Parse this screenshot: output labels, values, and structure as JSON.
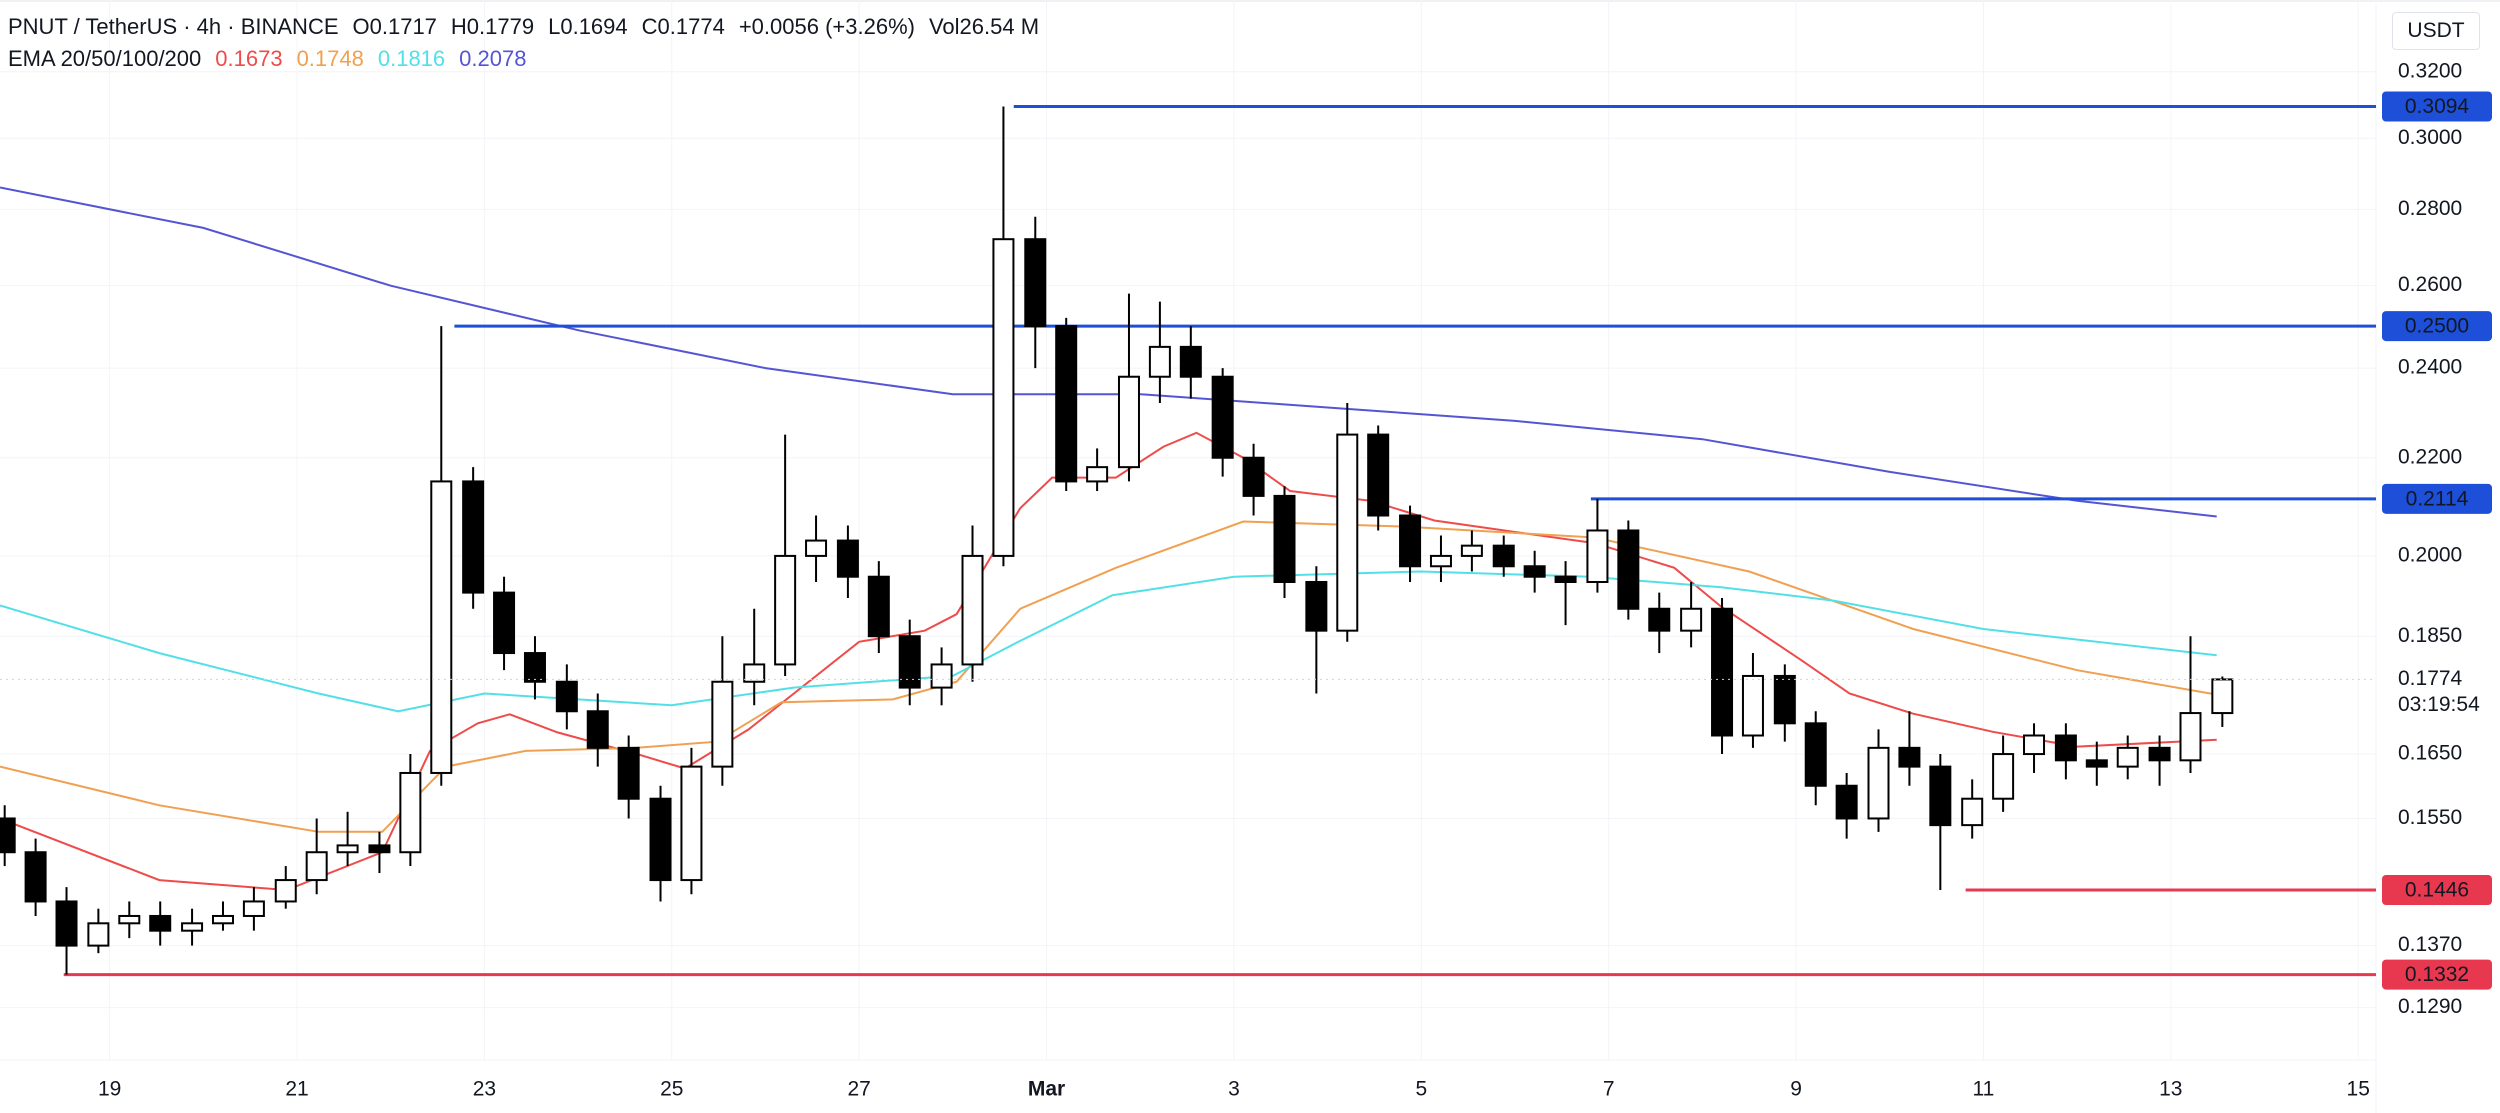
{
  "chart_data": {
    "type": "candlestick",
    "header": {
      "symbol": "PNUT / TetherUS · 4h · BINANCE",
      "stats": [
        "O0.1717",
        "H0.1779",
        "L0.1694",
        "C0.1774",
        "+0.0056 (+3.26%)",
        "Vol26.54 M"
      ],
      "indicator": "EMA 20/50/100/200"
    },
    "currency": "USDT",
    "log_scale": true,
    "grid": true,
    "xlim": [
      -1.17,
      24.19
    ],
    "xticks": [
      {
        "value": 0,
        "label": "19"
      },
      {
        "value": 2,
        "label": "21"
      },
      {
        "value": 4,
        "label": "23"
      },
      {
        "value": 6,
        "label": "25"
      },
      {
        "value": 8,
        "label": "27"
      },
      {
        "value": 10,
        "label": "Mar"
      },
      {
        "value": 12,
        "label": "3"
      },
      {
        "value": 14,
        "label": "5"
      },
      {
        "value": 16,
        "label": "7"
      },
      {
        "value": 18,
        "label": "9"
      },
      {
        "value": 20,
        "label": "11"
      },
      {
        "value": 22,
        "label": "13"
      },
      {
        "value": 24,
        "label": "15"
      }
    ],
    "ylim": [
      0.1226,
      0.3431
    ],
    "yticks": [
      {
        "value": 0.32,
        "label": "0.3200"
      },
      {
        "value": 0.3,
        "label": "0.3000"
      },
      {
        "value": 0.28,
        "label": "0.2800"
      },
      {
        "value": 0.26,
        "label": "0.2600"
      },
      {
        "value": 0.24,
        "label": "0.2400"
      },
      {
        "value": 0.22,
        "label": "0.2200"
      },
      {
        "value": 0.2,
        "label": "0.2000"
      },
      {
        "value": 0.185,
        "label": "0.1850"
      },
      {
        "value": 0.165,
        "label": "0.1650"
      },
      {
        "value": 0.155,
        "label": "0.1550"
      },
      {
        "value": 0.137,
        "label": "0.1370"
      },
      {
        "value": 0.129,
        "label": "0.1290"
      }
    ],
    "up_color": "#ffffff",
    "down_color": "#000000",
    "candles": {
      "x": [
        -1.12,
        -0.79,
        -0.46,
        -0.12,
        0.21,
        0.54,
        0.88,
        1.21,
        1.54,
        1.88,
        2.21,
        2.54,
        2.88,
        3.21,
        3.54,
        3.88,
        4.21,
        4.54,
        4.88,
        5.21,
        5.54,
        5.88,
        6.21,
        6.54,
        6.88,
        7.21,
        7.54,
        7.88,
        8.21,
        8.54,
        8.88,
        9.21,
        9.54,
        9.88,
        10.21,
        10.54,
        10.88,
        11.21,
        11.54,
        11.88,
        12.21,
        12.54,
        12.88,
        13.21,
        13.54,
        13.88,
        14.21,
        14.54,
        14.88,
        15.21,
        15.54,
        15.88,
        16.21,
        16.54,
        16.88,
        17.21,
        17.54,
        17.88,
        18.21,
        18.54,
        18.88,
        19.21,
        19.54,
        19.88,
        20.21,
        20.54,
        20.88,
        21.21,
        21.54,
        21.88,
        22.21,
        22.55
      ],
      "open": [
        0.155,
        0.15,
        0.143,
        0.137,
        0.14,
        0.141,
        0.139,
        0.14,
        0.141,
        0.143,
        0.146,
        0.15,
        0.151,
        0.15,
        0.162,
        0.215,
        0.193,
        0.182,
        0.177,
        0.172,
        0.166,
        0.158,
        0.146,
        0.163,
        0.177,
        0.18,
        0.2,
        0.203,
        0.196,
        0.185,
        0.176,
        0.18,
        0.2,
        0.272,
        0.25,
        0.215,
        0.218,
        0.238,
        0.245,
        0.238,
        0.22,
        0.212,
        0.195,
        0.186,
        0.225,
        0.208,
        0.198,
        0.2,
        0.202,
        0.198,
        0.196,
        0.195,
        0.205,
        0.19,
        0.186,
        0.19,
        0.168,
        0.178,
        0.17,
        0.16,
        0.155,
        0.166,
        0.163,
        0.154,
        0.158,
        0.165,
        0.168,
        0.164,
        0.163,
        0.166,
        0.164,
        0.1717
      ],
      "high": [
        0.157,
        0.152,
        0.145,
        0.142,
        0.143,
        0.143,
        0.142,
        0.143,
        0.145,
        0.148,
        0.155,
        0.156,
        0.153,
        0.165,
        0.25,
        0.218,
        0.196,
        0.185,
        0.18,
        0.175,
        0.168,
        0.16,
        0.166,
        0.185,
        0.19,
        0.225,
        0.208,
        0.206,
        0.199,
        0.188,
        0.183,
        0.206,
        0.3094,
        0.278,
        0.252,
        0.222,
        0.258,
        0.256,
        0.25,
        0.24,
        0.223,
        0.214,
        0.198,
        0.232,
        0.227,
        0.21,
        0.204,
        0.205,
        0.204,
        0.201,
        0.199,
        0.2114,
        0.207,
        0.193,
        0.195,
        0.192,
        0.182,
        0.18,
        0.172,
        0.162,
        0.169,
        0.172,
        0.165,
        0.161,
        0.168,
        0.17,
        0.17,
        0.167,
        0.168,
        0.168,
        0.185,
        0.1779
      ],
      "low": [
        0.148,
        0.141,
        0.1332,
        0.136,
        0.138,
        0.137,
        0.137,
        0.139,
        0.139,
        0.142,
        0.144,
        0.148,
        0.147,
        0.148,
        0.16,
        0.19,
        0.179,
        0.174,
        0.169,
        0.163,
        0.155,
        0.143,
        0.144,
        0.16,
        0.173,
        0.178,
        0.195,
        0.192,
        0.182,
        0.173,
        0.173,
        0.177,
        0.198,
        0.24,
        0.213,
        0.213,
        0.215,
        0.232,
        0.233,
        0.216,
        0.208,
        0.192,
        0.175,
        0.184,
        0.205,
        0.195,
        0.195,
        0.197,
        0.196,
        0.193,
        0.187,
        0.193,
        0.188,
        0.182,
        0.183,
        0.165,
        0.166,
        0.167,
        0.157,
        0.152,
        0.153,
        0.16,
        0.1446,
        0.152,
        0.156,
        0.162,
        0.161,
        0.16,
        0.161,
        0.16,
        0.162,
        0.1694
      ],
      "close": [
        0.15,
        0.143,
        0.137,
        0.14,
        0.141,
        0.139,
        0.14,
        0.141,
        0.143,
        0.146,
        0.15,
        0.151,
        0.15,
        0.162,
        0.215,
        0.193,
        0.182,
        0.177,
        0.172,
        0.166,
        0.158,
        0.146,
        0.163,
        0.177,
        0.18,
        0.2,
        0.203,
        0.196,
        0.185,
        0.176,
        0.18,
        0.2,
        0.272,
        0.25,
        0.215,
        0.218,
        0.238,
        0.245,
        0.238,
        0.22,
        0.212,
        0.195,
        0.186,
        0.225,
        0.208,
        0.198,
        0.2,
        0.202,
        0.198,
        0.196,
        0.195,
        0.205,
        0.19,
        0.186,
        0.19,
        0.168,
        0.178,
        0.17,
        0.16,
        0.155,
        0.166,
        0.163,
        0.154,
        0.158,
        0.165,
        0.168,
        0.164,
        0.163,
        0.166,
        0.164,
        0.1717,
        0.1774
      ]
    },
    "ema": [
      {
        "color": "#ee4b4b",
        "legend_value": "0.1673",
        "x": [
          -1.17,
          0.53,
          1.89,
          2.91,
          3.42,
          3.93,
          4.27,
          4.78,
          5.63,
          6.14,
          6.82,
          8.0,
          8.7,
          9.04,
          9.38,
          9.72,
          10.06,
          10.74,
          11.25,
          11.6,
          12.1,
          12.6,
          13.46,
          14.14,
          15.0,
          15.85,
          16.7,
          17.2,
          18.06,
          18.57,
          19.25,
          20.1,
          21.0,
          22.49
        ],
        "values": [
          0.155,
          0.146,
          0.1446,
          0.15,
          0.1655,
          0.17,
          0.1715,
          0.1685,
          0.165,
          0.1627,
          0.169,
          0.184,
          0.186,
          0.189,
          0.199,
          0.2095,
          0.2158,
          0.2158,
          0.2224,
          0.2254,
          0.22,
          0.213,
          0.211,
          0.207,
          0.2047,
          0.2025,
          0.1977,
          0.1904,
          0.1807,
          0.175,
          0.1716,
          0.1686,
          0.1662,
          0.1673
        ]
      },
      {
        "color": "#f0a050",
        "legend_value": "0.1748",
        "x": [
          -1.17,
          0.53,
          2.23,
          2.91,
          3.59,
          4.44,
          5.63,
          6.48,
          7.17,
          8.36,
          9.04,
          9.72,
          10.74,
          12.1,
          13.8,
          15.85,
          17.5,
          19.25,
          21.0,
          22.49
        ],
        "values": [
          0.163,
          0.157,
          0.153,
          0.153,
          0.163,
          0.1655,
          0.166,
          0.167,
          0.1735,
          0.174,
          0.177,
          0.19,
          0.1977,
          0.2068,
          0.2058,
          0.2036,
          0.197,
          0.1863,
          0.179,
          0.1748
        ]
      },
      {
        "color": "#52e0e6",
        "legend_value": "0.1816",
        "x": [
          -1.17,
          0.53,
          2.23,
          3.08,
          4.0,
          6.0,
          7.3,
          9.0,
          9.7,
          10.7,
          12.0,
          14.0,
          15.8,
          17.2,
          18.4,
          20.0,
          22.49
        ],
        "values": [
          0.1906,
          0.182,
          0.175,
          0.172,
          0.175,
          0.173,
          0.176,
          0.178,
          0.184,
          0.1925,
          0.196,
          0.197,
          0.196,
          0.194,
          0.1915,
          0.1863,
          0.1816
        ]
      },
      {
        "color": "#5555d4",
        "legend_value": "0.2078",
        "x": [
          -1.17,
          1,
          3,
          5,
          7,
          9,
          11,
          13,
          15,
          17,
          19,
          21,
          22.49
        ],
        "values": [
          0.286,
          0.275,
          0.26,
          0.249,
          0.24,
          0.234,
          0.234,
          0.231,
          0.228,
          0.224,
          0.217,
          0.211,
          0.2078
        ]
      }
    ],
    "levels": [
      {
        "value": 0.3094,
        "label": "0.3094",
        "color": "#1e4fd8",
        "x_start": 9.65
      },
      {
        "value": 0.25,
        "label": "0.2500",
        "color": "#1e4fd8",
        "x_start": 3.68
      },
      {
        "value": 0.2114,
        "label": "0.2114",
        "color": "#1e4fd8",
        "x_start": 15.81
      },
      {
        "value": 0.1446,
        "label": "0.1446",
        "color": "#e8384f",
        "x_start": 19.81
      },
      {
        "value": 0.1332,
        "label": "0.1332",
        "color": "#e8384f",
        "x_start": -0.49
      }
    ],
    "current_price": {
      "value": 0.1774,
      "label": "0.1774",
      "countdown": "03:19:54"
    }
  }
}
